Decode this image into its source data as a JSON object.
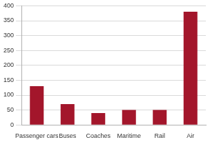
{
  "chart_data": {
    "type": "bar",
    "categories": [
      "Passenger cars",
      "Buses",
      "Coaches",
      "Maritime",
      "Rail",
      "Air"
    ],
    "values": [
      130,
      70,
      40,
      50,
      50,
      380
    ],
    "color": "#a3162b",
    "ylim": [
      0,
      400
    ],
    "yticks": [
      0,
      50,
      100,
      150,
      200,
      250,
      300,
      350,
      400
    ],
    "grid": true
  }
}
